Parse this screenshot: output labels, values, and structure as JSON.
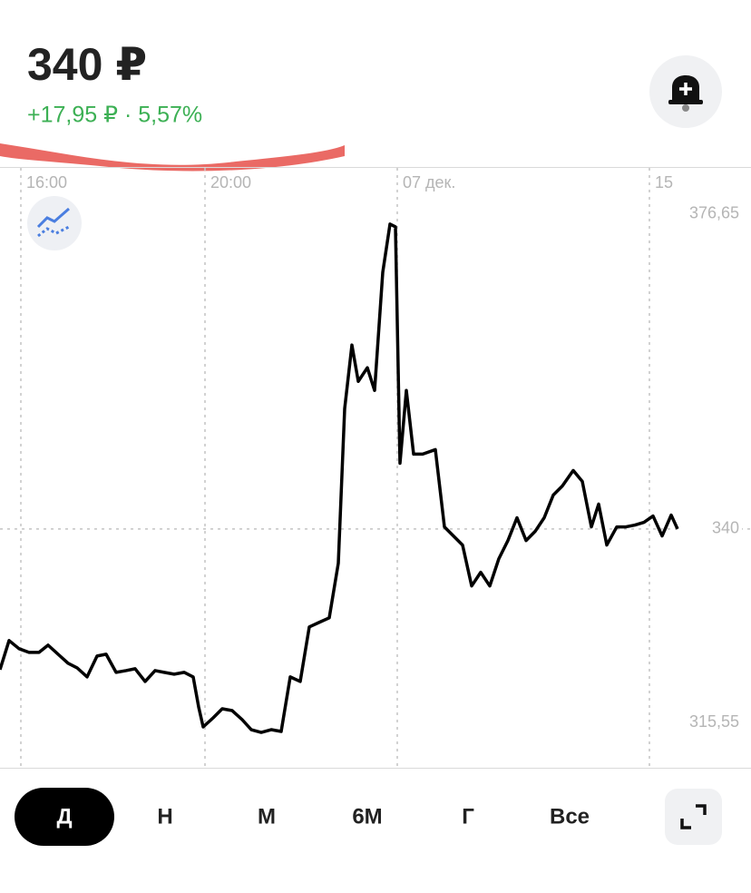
{
  "header": {
    "price": "340 ₽",
    "change": "+17,95 ₽ · 5,57%"
  },
  "chart_data": {
    "type": "line",
    "x": [
      0,
      2.5,
      5.25,
      8,
      10.75,
      13.25,
      16,
      18.75,
      21.25,
      24,
      26.75,
      29.25,
      32,
      34.75,
      37.25,
      40,
      42.75,
      45.25,
      48,
      50.75,
      53.25,
      54.75,
      56,
      58.75,
      61.25,
      64,
      66.75,
      69.25,
      72,
      74.75,
      77.5,
      80,
      82.75,
      85.25,
      88,
      90.75,
      93.25,
      95,
      97,
      98.75,
      101.25,
      103.25,
      105.5,
      107.5,
      109,
      110.25,
      112,
      114,
      116.5,
      120,
      122.5,
      125,
      127.5,
      130,
      132.5,
      135,
      137.5,
      140,
      142.5,
      145,
      147.5,
      150,
      152.5,
      155,
      158,
      160.5,
      163,
      165,
      167.25,
      170,
      172.5,
      175,
      177.5,
      180,
      182.5,
      185,
      186.75
    ],
    "series": [
      {
        "color": "#000000",
        "values": [
          323.09,
          326.59,
          325.61,
          325.17,
          325.17,
          326.04,
          324.95,
          323.86,
          323.31,
          322.22,
          324.73,
          324.95,
          322.77,
          322.98,
          323.2,
          321.67,
          322.98,
          322.77,
          322.55,
          322.77,
          322.22,
          318.61,
          316.21,
          317.3,
          318.39,
          318.17,
          317.08,
          315.88,
          315.55,
          315.88,
          315.66,
          322.22,
          321.67,
          328.23,
          328.78,
          329.32,
          335.88,
          354.46,
          362.11,
          357.74,
          359.38,
          356.65,
          370.86,
          376.65,
          376.32,
          347.9,
          356.65,
          349.0,
          349.0,
          349.54,
          340.25,
          339.16,
          338.07,
          333.15,
          334.79,
          333.15,
          336.43,
          338.61,
          341.35,
          338.61,
          339.71,
          341.35,
          344.08,
          345.17,
          347.03,
          345.72,
          340.25,
          342.99,
          338.07,
          340.25,
          340.25,
          340.47,
          340.8,
          341.56,
          339.16,
          341.67,
          340
        ]
      }
    ],
    "xlim": [
      0,
      207
    ],
    "xticks": [
      {
        "value": 5.75,
        "label": "16:00"
      },
      {
        "value": 56.5,
        "label": "20:00"
      },
      {
        "value": 109.5,
        "label": "07 дек."
      },
      {
        "value": 179,
        "label": "15"
      }
    ],
    "ylim": [
      311.3,
      383.4
    ],
    "yticks": [
      {
        "value": 376.65,
        "label": "376,65"
      },
      340,
      {
        "value": 315.55,
        "label": "315,55"
      }
    ],
    "reference_line": 340,
    "grid": true
  },
  "periods": [
    "Д",
    "Н",
    "М",
    "6М",
    "Г",
    "Все"
  ],
  "selected_period": 0
}
